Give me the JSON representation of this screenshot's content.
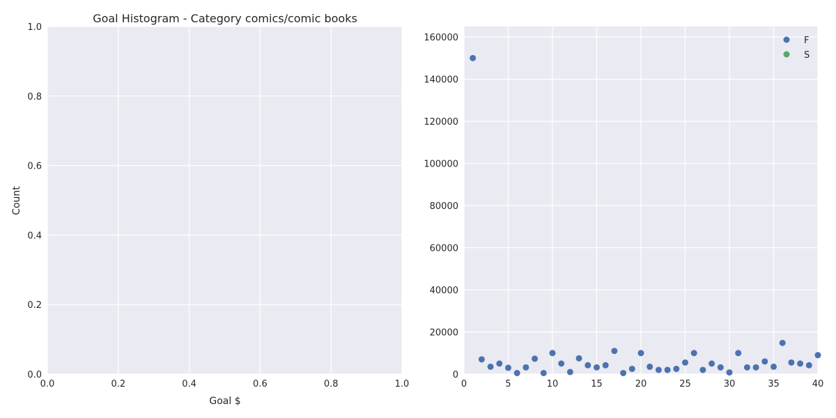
{
  "chart_data": [
    {
      "type": "histogram",
      "title": "Goal Histogram - Category comics/comic books",
      "xlabel": "Goal $",
      "ylabel": "Count",
      "xlim": [
        0.0,
        1.0
      ],
      "ylim": [
        0.0,
        1.0
      ],
      "xticks": [
        "0.0",
        "0.2",
        "0.4",
        "0.6",
        "0.8",
        "1.0"
      ],
      "yticks": [
        "0.0",
        "0.2",
        "0.4",
        "0.6",
        "0.8",
        "1.0"
      ],
      "grid": true,
      "bins": [],
      "counts": []
    },
    {
      "type": "scatter",
      "title": "",
      "xlabel": "",
      "ylabel": "",
      "xlim": [
        0,
        40
      ],
      "ylim": [
        0,
        165000
      ],
      "xticks": [
        "0",
        "5",
        "10",
        "15",
        "20",
        "25",
        "30",
        "35",
        "40"
      ],
      "yticks": [
        "0",
        "20000",
        "40000",
        "60000",
        "80000",
        "100000",
        "120000",
        "140000",
        "160000"
      ],
      "grid": true,
      "legend_position": "top-right",
      "series": [
        {
          "name": "F",
          "color": "#4c72b0",
          "x": [
            1,
            2,
            3,
            4,
            5,
            6,
            7,
            8,
            9,
            10,
            11,
            12,
            13,
            14,
            15,
            16,
            17,
            18,
            19,
            20,
            21,
            22,
            23,
            24,
            25,
            26,
            27,
            28,
            29,
            30,
            31,
            32,
            33,
            34,
            35,
            36,
            37,
            38,
            39,
            40
          ],
          "y": [
            150000,
            7000,
            3500,
            5000,
            3000,
            500,
            3200,
            7300,
            500,
            10000,
            5000,
            1000,
            7500,
            4200,
            3200,
            4200,
            11000,
            500,
            2500,
            10000,
            3500,
            2000,
            2000,
            2500,
            5500,
            10000,
            2000,
            5000,
            3200,
            800,
            10000,
            3200,
            3200,
            6000,
            3500,
            14800,
            5500,
            5000,
            4200,
            9000
          ]
        },
        {
          "name": "S",
          "color": "#55a868",
          "x": [],
          "y": []
        }
      ]
    }
  ]
}
